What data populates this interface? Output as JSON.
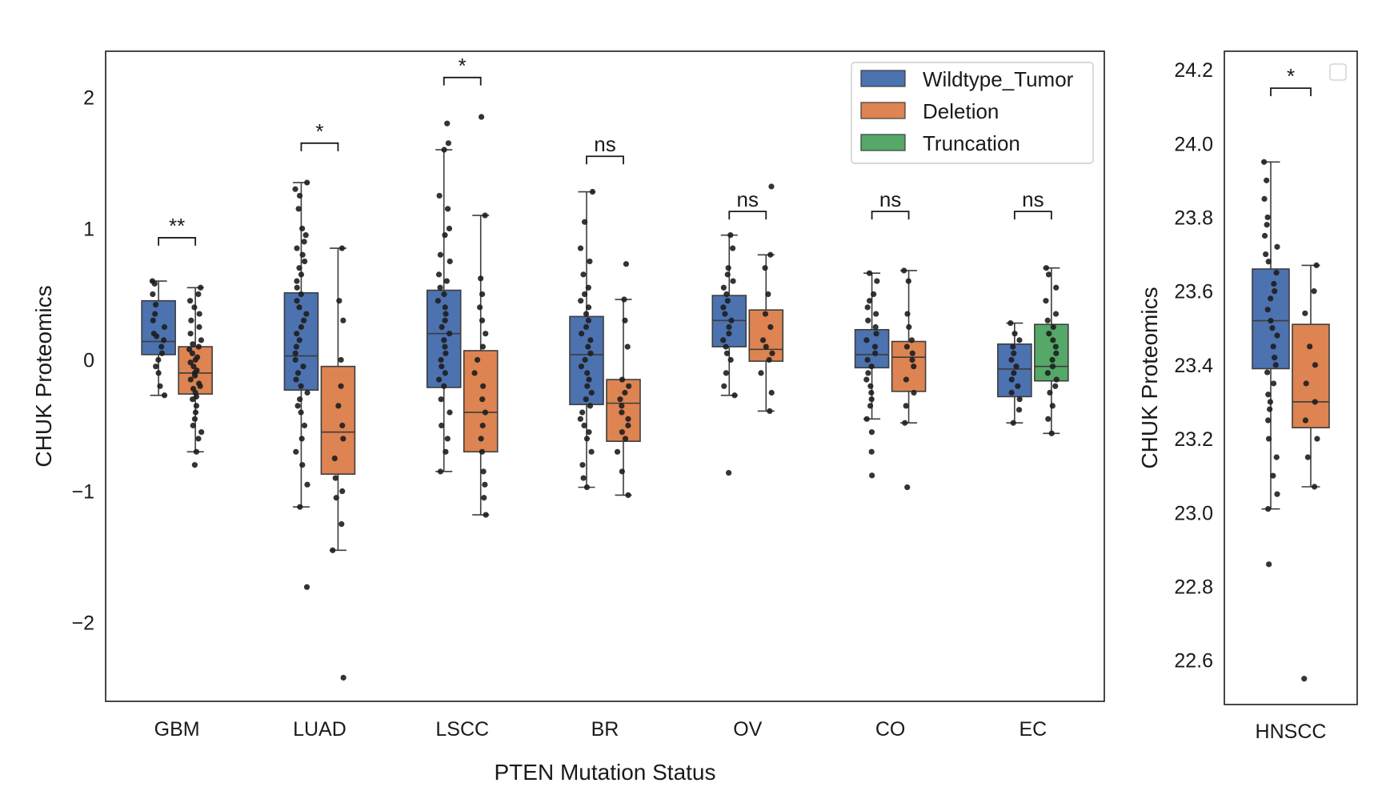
{
  "chart_data": [
    {
      "type": "box",
      "xlabel": "PTEN Mutation Status",
      "ylabel": "CHUK Proteomics",
      "ylim": [
        -2.6,
        2.35
      ],
      "yticks": [
        2,
        1,
        0,
        -1,
        -2
      ],
      "ytick_labels": [
        "2",
        "1",
        "0",
        "−1",
        "−2"
      ],
      "legend": {
        "placement": "upper right",
        "entries": [
          {
            "name": "Wildtype_Tumor",
            "color": "#4c72b0"
          },
          {
            "name": "Deletion",
            "color": "#dd8452"
          },
          {
            "name": "Truncation",
            "color": "#55a868"
          }
        ]
      },
      "categories": [
        "GBM",
        "LUAD",
        "LSCC",
        "BR",
        "OV",
        "CO",
        "EC"
      ],
      "groups": [
        {
          "category": "GBM",
          "significance": "**",
          "bracket_y": 0.93,
          "boxes": [
            {
              "series": "Wildtype_Tumor",
              "whislo": -0.27,
              "q1": 0.04,
              "med": 0.14,
              "q3": 0.45,
              "whishi": 0.6,
              "fliers": [],
              "points": [
                0.6,
                0.58,
                0.5,
                0.42,
                0.35,
                0.3,
                0.25,
                0.2,
                0.18,
                0.15,
                0.1,
                0.05,
                0.0,
                -0.05,
                -0.1,
                -0.2,
                -0.27
              ]
            },
            {
              "series": "Deletion",
              "whislo": -0.7,
              "q1": -0.26,
              "med": -0.1,
              "q3": 0.1,
              "whishi": 0.55,
              "fliers": [
                -0.8
              ],
              "points": [
                0.55,
                0.5,
                0.45,
                0.4,
                0.35,
                0.3,
                0.25,
                0.2,
                0.15,
                0.12,
                0.1,
                0.08,
                0.05,
                0.02,
                0.0,
                -0.02,
                -0.05,
                -0.08,
                -0.1,
                -0.12,
                -0.15,
                -0.18,
                -0.2,
                -0.22,
                -0.25,
                -0.28,
                -0.3,
                -0.35,
                -0.4,
                -0.45,
                -0.5,
                -0.55,
                -0.6,
                -0.7,
                -0.8
              ]
            }
          ]
        },
        {
          "category": "LUAD",
          "significance": "*",
          "bracket_y": 1.65,
          "boxes": [
            {
              "series": "Wildtype_Tumor",
              "whislo": -1.12,
              "q1": -0.23,
              "med": 0.03,
              "q3": 0.51,
              "whishi": 1.35,
              "fliers": [
                -1.73
              ],
              "points": [
                1.35,
                1.3,
                1.25,
                1.15,
                1.0,
                0.95,
                0.9,
                0.85,
                0.8,
                0.75,
                0.7,
                0.65,
                0.6,
                0.55,
                0.5,
                0.45,
                0.4,
                0.35,
                0.3,
                0.25,
                0.2,
                0.15,
                0.1,
                0.05,
                0.0,
                -0.05,
                -0.1,
                -0.15,
                -0.2,
                -0.25,
                -0.3,
                -0.35,
                -0.4,
                -0.5,
                -0.6,
                -0.7,
                -0.8,
                -0.95,
                -1.12,
                -1.73
              ]
            },
            {
              "series": "Deletion",
              "whislo": -1.45,
              "q1": -0.87,
              "med": -0.55,
              "q3": -0.05,
              "whishi": 0.85,
              "fliers": [
                -2.42
              ],
              "points": [
                0.85,
                0.45,
                0.3,
                0.0,
                -0.2,
                -0.35,
                -0.5,
                -0.6,
                -0.75,
                -0.9,
                -1.0,
                -1.05,
                -1.25,
                -1.45,
                -2.42
              ]
            }
          ]
        },
        {
          "category": "LSCC",
          "significance": "*",
          "bracket_y": 2.15,
          "boxes": [
            {
              "series": "Wildtype_Tumor",
              "whislo": -0.85,
              "q1": -0.21,
              "med": 0.2,
              "q3": 0.53,
              "whishi": 1.6,
              "fliers": [
                1.8
              ],
              "points": [
                1.8,
                1.65,
                1.6,
                1.25,
                1.15,
                1.0,
                0.95,
                0.8,
                0.75,
                0.65,
                0.6,
                0.55,
                0.5,
                0.45,
                0.4,
                0.35,
                0.3,
                0.25,
                0.2,
                0.15,
                0.1,
                0.05,
                0.0,
                -0.05,
                -0.1,
                -0.15,
                -0.2,
                -0.3,
                -0.4,
                -0.5,
                -0.6,
                -0.7,
                -0.85
              ]
            },
            {
              "series": "Deletion",
              "whislo": -1.18,
              "q1": -0.7,
              "med": -0.4,
              "q3": 0.07,
              "whishi": 1.1,
              "fliers": [
                1.85
              ],
              "points": [
                1.85,
                1.1,
                0.62,
                0.5,
                0.4,
                0.3,
                0.2,
                0.1,
                0.0,
                -0.1,
                -0.2,
                -0.3,
                -0.4,
                -0.5,
                -0.6,
                -0.7,
                -0.85,
                -0.95,
                -1.05,
                -1.18
              ]
            }
          ]
        },
        {
          "category": "BR",
          "significance": "ns",
          "bracket_y": 1.55,
          "boxes": [
            {
              "series": "Wildtype_Tumor",
              "whislo": -0.97,
              "q1": -0.34,
              "med": 0.04,
              "q3": 0.33,
              "whishi": 1.28,
              "fliers": [],
              "points": [
                1.28,
                1.05,
                0.85,
                0.75,
                0.65,
                0.55,
                0.5,
                0.45,
                0.4,
                0.35,
                0.3,
                0.25,
                0.2,
                0.15,
                0.1,
                0.05,
                0.0,
                -0.05,
                -0.1,
                -0.15,
                -0.2,
                -0.25,
                -0.3,
                -0.35,
                -0.4,
                -0.45,
                -0.5,
                -0.55,
                -0.6,
                -0.7,
                -0.8,
                -0.9,
                -0.97
              ]
            },
            {
              "series": "Deletion",
              "whislo": -1.03,
              "q1": -0.62,
              "med": -0.33,
              "q3": -0.15,
              "whishi": 0.46,
              "fliers": [
                0.73
              ],
              "points": [
                0.73,
                0.46,
                0.3,
                0.1,
                -0.15,
                -0.2,
                -0.25,
                -0.3,
                -0.35,
                -0.4,
                -0.45,
                -0.5,
                -0.55,
                -0.6,
                -0.7,
                -0.85,
                -1.03
              ]
            }
          ]
        },
        {
          "category": "OV",
          "significance": "ns",
          "bracket_y": 1.13,
          "boxes": [
            {
              "series": "Wildtype_Tumor",
              "whislo": -0.27,
              "q1": 0.1,
              "med": 0.3,
              "q3": 0.49,
              "whishi": 0.95,
              "fliers": [
                -0.86
              ],
              "points": [
                0.95,
                0.85,
                0.7,
                0.65,
                0.6,
                0.55,
                0.5,
                0.45,
                0.4,
                0.35,
                0.3,
                0.25,
                0.2,
                0.15,
                0.1,
                0.05,
                0.0,
                -0.1,
                -0.2,
                -0.27,
                -0.86
              ]
            },
            {
              "series": "Deletion",
              "whislo": -0.39,
              "q1": -0.01,
              "med": 0.08,
              "q3": 0.38,
              "whishi": 0.8,
              "fliers": [
                1.32
              ],
              "points": [
                1.32,
                0.8,
                0.7,
                0.5,
                0.35,
                0.25,
                0.15,
                0.1,
                0.05,
                0.0,
                -0.1,
                -0.25,
                -0.39
              ]
            }
          ]
        },
        {
          "category": "CO",
          "significance": "ns",
          "bracket_y": 1.13,
          "boxes": [
            {
              "series": "Wildtype_Tumor",
              "whislo": -0.45,
              "q1": -0.06,
              "med": 0.04,
              "q3": 0.23,
              "whishi": 0.66,
              "fliers": [
                -0.7,
                -0.88
              ],
              "points": [
                0.66,
                0.6,
                0.5,
                0.45,
                0.4,
                0.35,
                0.3,
                0.25,
                0.2,
                0.15,
                0.1,
                0.05,
                0.0,
                -0.05,
                -0.1,
                -0.15,
                -0.2,
                -0.25,
                -0.3,
                -0.35,
                -0.45,
                -0.55,
                -0.7,
                -0.88
              ]
            },
            {
              "series": "Deletion",
              "whislo": -0.48,
              "q1": -0.24,
              "med": 0.02,
              "q3": 0.14,
              "whishi": 0.68,
              "fliers": [
                -0.97
              ],
              "points": [
                0.68,
                0.6,
                0.35,
                0.25,
                0.15,
                0.1,
                0.05,
                0.0,
                -0.05,
                -0.15,
                -0.25,
                -0.35,
                -0.48,
                -0.97
              ]
            }
          ]
        },
        {
          "category": "EC",
          "significance": "ns",
          "bracket_y": 1.13,
          "boxes": [
            {
              "series": "Wildtype_Tumor",
              "whislo": -0.48,
              "q1": -0.28,
              "med": -0.07,
              "q3": 0.12,
              "whishi": 0.28,
              "fliers": [],
              "points": [
                0.28,
                0.2,
                0.15,
                0.1,
                0.05,
                0.0,
                -0.05,
                -0.1,
                -0.15,
                -0.2,
                -0.25,
                -0.3,
                -0.38,
                -0.48
              ]
            },
            {
              "series": "Truncation",
              "whislo": -0.56,
              "q1": -0.16,
              "med": -0.05,
              "q3": 0.27,
              "whishi": 0.7,
              "fliers": [],
              "points": [
                0.7,
                0.65,
                0.55,
                0.45,
                0.35,
                0.3,
                0.25,
                0.2,
                0.15,
                0.1,
                0.05,
                0.0,
                -0.05,
                -0.1,
                -0.15,
                -0.2,
                -0.25,
                -0.35,
                -0.45,
                -0.56
              ]
            }
          ]
        }
      ]
    },
    {
      "type": "box",
      "xlabel": "",
      "ylabel": "CHUK Proteomics",
      "ylim": [
        22.48,
        24.25
      ],
      "yticks": [
        24.2,
        24.0,
        23.8,
        23.6,
        23.4,
        23.2,
        23.0,
        22.8,
        22.6
      ],
      "ytick_labels": [
        "24.2",
        "24.0",
        "23.8",
        "23.6",
        "23.4",
        "23.2",
        "23.0",
        "22.8",
        "22.6"
      ],
      "categories": [
        "HNSCC"
      ],
      "groups": [
        {
          "category": "HNSCC",
          "significance": "*",
          "bracket_y": 24.15,
          "boxes": [
            {
              "series": "Wildtype_Tumor",
              "whislo": 23.01,
              "q1": 23.39,
              "med": 23.52,
              "q3": 23.66,
              "whishi": 23.95,
              "fliers": [
                22.86
              ],
              "points": [
                23.95,
                23.9,
                23.85,
                23.8,
                23.78,
                23.75,
                23.72,
                23.7,
                23.68,
                23.65,
                23.62,
                23.6,
                23.58,
                23.55,
                23.52,
                23.5,
                23.48,
                23.45,
                23.42,
                23.4,
                23.38,
                23.35,
                23.32,
                23.3,
                23.28,
                23.25,
                23.2,
                23.15,
                23.1,
                23.05,
                23.01,
                22.86
              ]
            },
            {
              "series": "Deletion",
              "whislo": 23.07,
              "q1": 23.23,
              "med": 23.3,
              "q3": 23.51,
              "whishi": 23.67,
              "fliers": [
                22.55
              ],
              "points": [
                23.67,
                23.6,
                23.54,
                23.45,
                23.4,
                23.35,
                23.3,
                23.25,
                23.2,
                23.15,
                23.07,
                22.55
              ]
            }
          ]
        }
      ]
    }
  ]
}
